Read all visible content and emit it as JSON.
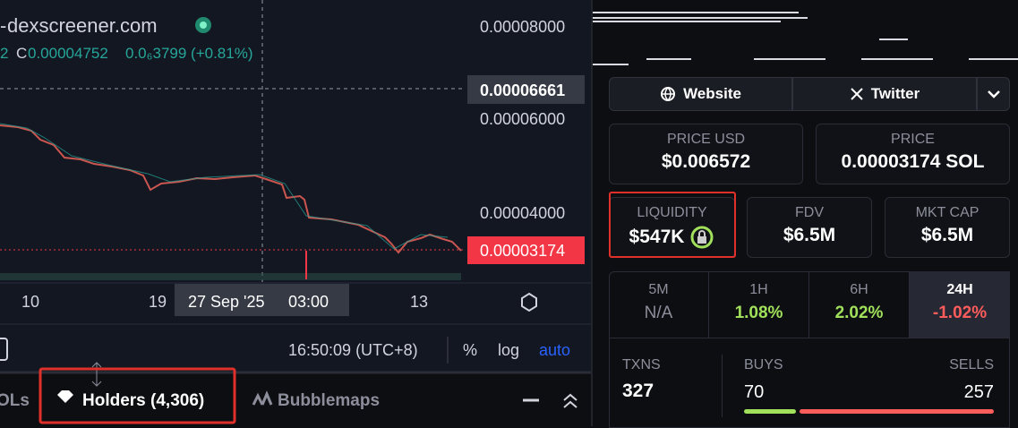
{
  "chart": {
    "watermark": "dexscreener.com",
    "ohlc_prefix": "2",
    "close_label": "C",
    "close_value": "0.00004752",
    "change": "0.0₆3799 (+0.81%)",
    "price_axis": [
      "0.00008000",
      "0.00006000",
      "0.00004000"
    ],
    "crosshair_price": "0.00006661",
    "current_price": "0.00003174",
    "time_axis": [
      "10",
      "19",
      "13"
    ],
    "crosshair_date": "27 Sep '25",
    "crosshair_time": "03:00"
  },
  "toolbar": {
    "clock": "16:50:09 (UTC+8)",
    "percent": "%",
    "log": "log",
    "auto": "auto"
  },
  "tabs": [
    "OLs",
    "Holders (4,306)",
    "Bubblemaps"
  ],
  "links": [
    "Website",
    "Twitter"
  ],
  "stats": [
    {
      "label": "PRICE USD",
      "value": "$0.006572"
    },
    {
      "label": "PRICE",
      "value": "0.00003174 SOL"
    },
    {
      "label": "LIQUIDITY",
      "value": "$547K"
    },
    {
      "label": "FDV",
      "value": "$6.5M"
    },
    {
      "label": "MKT CAP",
      "value": "$6.5M"
    }
  ],
  "timeframes": [
    {
      "label": "5M",
      "value": "N/A"
    },
    {
      "label": "1H",
      "value": "1.08%"
    },
    {
      "label": "6H",
      "value": "2.02%"
    },
    {
      "label": "24H",
      "value": "-1.02%"
    }
  ],
  "txns": {
    "label": "TXNS",
    "value": "327"
  },
  "buys": {
    "label": "BUYS",
    "value": "70"
  },
  "sells": {
    "label": "SELLS",
    "value": "257"
  }
}
